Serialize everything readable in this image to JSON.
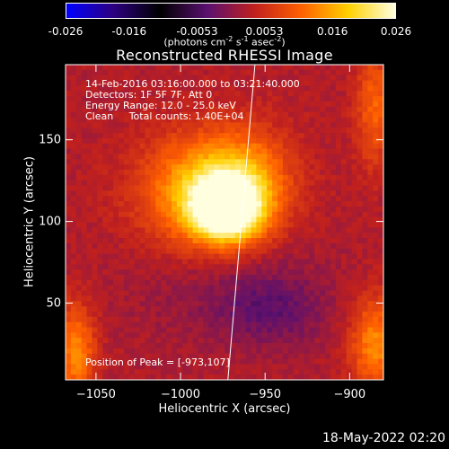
{
  "colorbar": {
    "ticks": [
      "-0.026",
      "-0.016",
      "-0.0053",
      "0.0053",
      "0.016",
      "0.026"
    ],
    "tick_values": [
      -0.026,
      -0.016,
      -0.0053,
      0.0053,
      0.016,
      0.026
    ],
    "units_main": "(photons cm",
    "units_sup1": "-2",
    "units_mid": " s",
    "units_sup2": "-1",
    "units_mid2": " asec",
    "units_sup3": "-2",
    "units_end": ")",
    "colors": [
      "#0000ff",
      "#2c0080",
      "#000000",
      "#5a1070",
      "#c0201e",
      "#ff6000",
      "#ffd000",
      "#ffffe0"
    ]
  },
  "chart_data": {
    "type": "heatmap",
    "title": "Reconstructed RHESSI Image",
    "xlabel": "Heliocentric X (arcsec)",
    "ylabel": "Heliocentric Y (arcsec)",
    "xlim": [
      -1068,
      -880
    ],
    "ylim": [
      3,
      196
    ],
    "x_ticks": [
      -1050,
      -1000,
      -950,
      -900
    ],
    "y_ticks": [
      50,
      100,
      150
    ],
    "clim": [
      -0.026,
      0.026
    ],
    "peak": {
      "x": -973,
      "y": 107
    },
    "annotation_lines": [
      "14-Feb-2016 03:16:00.000 to 03:21:40.000",
      "Detectors: 1F 5F 7F, Att 0",
      "Energy Range: 12.0 - 25.0 keV",
      "Clean     Total counts: 1.40E+04"
    ],
    "peak_label": "Position of Peak = [-973,107]",
    "limb_line": {
      "x_top": -956,
      "x_bottom": -972
    }
  },
  "timestamp": "18-May-2022 02:20"
}
